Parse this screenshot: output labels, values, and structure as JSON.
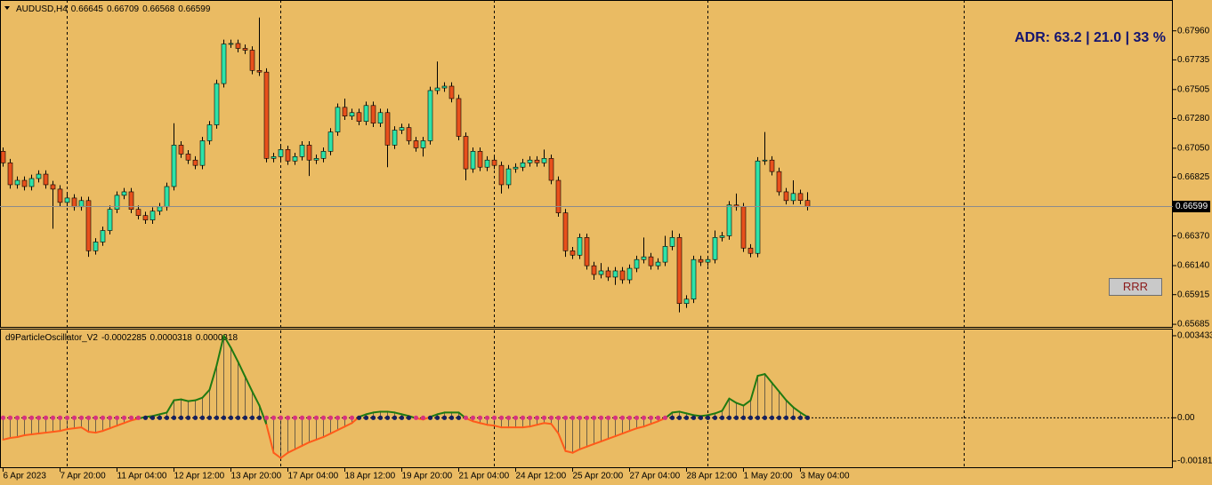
{
  "chart_data": [
    {
      "type": "candlestick",
      "symbol": "AUDUSD,H4",
      "categories": [
        "6 Apr 2023",
        null,
        null,
        null,
        null,
        null,
        null,
        null,
        "7 Apr 20:00",
        null,
        null,
        null,
        null,
        null,
        null,
        null,
        "11 Apr 04:00",
        null,
        null,
        null,
        null,
        null,
        null,
        null,
        "12 Apr 12:00",
        null,
        null,
        null,
        null,
        null,
        null,
        null,
        "13 Apr 20:00",
        null,
        null,
        null,
        null,
        null,
        null,
        null,
        "17 Apr 04:00",
        null,
        null,
        null,
        null,
        null,
        null,
        null,
        "18 Apr 12:00",
        null,
        null,
        null,
        null,
        null,
        null,
        null,
        "19 Apr 20:00",
        null,
        null,
        null,
        null,
        null,
        null,
        null,
        "21 Apr 04:00",
        null,
        null,
        null,
        null,
        null,
        null,
        null,
        "24 Apr 12:00",
        null,
        null,
        null,
        null,
        null,
        null,
        null,
        "25 Apr 20:00",
        null,
        null,
        null,
        null,
        null,
        null,
        null,
        "27 Apr 04:00",
        null,
        null,
        null,
        null,
        null,
        null,
        null,
        "28 Apr 12:00",
        null,
        null,
        null,
        null,
        null,
        null,
        null,
        "1 May 20:00",
        null,
        null,
        null,
        null,
        null,
        null,
        null,
        "3 May 04:00",
        null
      ],
      "open": [
        0.67026,
        0.66937,
        0.66767,
        0.66801,
        0.66753,
        0.66815,
        0.66849,
        0.66767,
        0.66733,
        0.6663,
        0.66664,
        0.66596,
        0.66644,
        0.66255,
        0.66323,
        0.66412,
        0.66576,
        0.66685,
        0.66712,
        0.66576,
        0.66528,
        0.66494,
        0.66562,
        0.66596,
        0.66753,
        0.67074,
        0.67005,
        0.66958,
        0.66917,
        0.67108,
        0.67231,
        0.67551,
        0.67858,
        0.67862,
        0.67824,
        0.6781,
        0.67653,
        0.6764,
        0.66971,
        0.66985,
        0.6704,
        0.66951,
        0.66985,
        0.67074,
        0.66958,
        0.66971,
        0.67026,
        0.67176,
        0.67367,
        0.67299,
        0.67326,
        0.67258,
        0.67381,
        0.67244,
        0.67326,
        0.67074,
        0.6719,
        0.6721,
        0.67108,
        0.67053,
        0.67108,
        0.67497,
        0.67517,
        0.67531,
        0.67435,
        0.67142,
        0.6689,
        0.67026,
        0.66903,
        0.66958,
        0.66917,
        0.66767,
        0.6689,
        0.66903,
        0.66937,
        0.66958,
        0.66937,
        0.66971,
        0.66801,
        0.66549,
        0.66255,
        0.66221,
        0.66358,
        0.66139,
        0.66071,
        0.66099,
        0.66051,
        0.66099,
        0.6603,
        0.66119,
        0.66187,
        0.66208,
        0.66139,
        0.66167,
        0.66289,
        0.66358,
        0.65846,
        0.6588,
        0.66187,
        0.66167,
        0.66187,
        0.66358,
        0.66371,
        0.6661,
        0.66596,
        0.66276,
        0.66235,
        0.66951,
        0.66958,
        0.66869,
        0.66712,
        0.66644,
        0.66699,
        0.66645
      ],
      "high": [
        0.67056,
        0.66967,
        0.66831,
        0.66831,
        0.66845,
        0.66879,
        0.66879,
        0.66797,
        0.66763,
        0.66694,
        0.66694,
        0.66674,
        0.66674,
        0.66353,
        0.66442,
        0.66606,
        0.66715,
        0.66742,
        0.66742,
        0.66606,
        0.66558,
        0.66592,
        0.66626,
        0.66783,
        0.67244,
        0.67104,
        0.67035,
        0.66988,
        0.67138,
        0.67261,
        0.67581,
        0.67892,
        0.67892,
        0.67892,
        0.67854,
        0.6784,
        0.68063,
        0.6767,
        0.67015,
        0.6707,
        0.6707,
        0.67015,
        0.67104,
        0.67104,
        0.67001,
        0.67056,
        0.67206,
        0.67397,
        0.67435,
        0.67356,
        0.67356,
        0.67411,
        0.67411,
        0.67356,
        0.67356,
        0.6722,
        0.6724,
        0.6724,
        0.67138,
        0.67138,
        0.67527,
        0.67722,
        0.67561,
        0.67561,
        0.67465,
        0.67172,
        0.67056,
        0.67056,
        0.66988,
        0.66988,
        0.66947,
        0.6692,
        0.66933,
        0.66967,
        0.66988,
        0.66988,
        0.6704,
        0.67001,
        0.66831,
        0.66579,
        0.66285,
        0.66388,
        0.66388,
        0.66169,
        0.6616,
        0.66129,
        0.66129,
        0.66129,
        0.66149,
        0.66217,
        0.66358,
        0.66238,
        0.66197,
        0.66371,
        0.66412,
        0.66388,
        0.6591,
        0.66217,
        0.66217,
        0.66217,
        0.66412,
        0.66401,
        0.6664,
        0.66699,
        0.66626,
        0.66306,
        0.66981,
        0.67176,
        0.66988,
        0.66899,
        0.66742,
        0.66801,
        0.66729,
        0.66709
      ],
      "low": [
        0.66907,
        0.66737,
        0.66737,
        0.66723,
        0.66723,
        0.66785,
        0.66737,
        0.66426,
        0.666,
        0.666,
        0.66566,
        0.66566,
        0.66208,
        0.66225,
        0.66293,
        0.66382,
        0.66546,
        0.66655,
        0.66546,
        0.66498,
        0.66464,
        0.66464,
        0.66532,
        0.66566,
        0.66723,
        0.66975,
        0.66928,
        0.66887,
        0.66887,
        0.67078,
        0.67201,
        0.67521,
        0.67828,
        0.67794,
        0.6778,
        0.67623,
        0.6761,
        0.66941,
        0.66941,
        0.66955,
        0.66921,
        0.66921,
        0.66955,
        0.66835,
        0.66928,
        0.66941,
        0.66996,
        0.67146,
        0.67269,
        0.67269,
        0.67228,
        0.67228,
        0.67214,
        0.67214,
        0.66903,
        0.67044,
        0.6716,
        0.67078,
        0.67023,
        0.66985,
        0.67078,
        0.67467,
        0.67487,
        0.67405,
        0.67112,
        0.66801,
        0.6686,
        0.66873,
        0.66873,
        0.66887,
        0.66699,
        0.66737,
        0.6686,
        0.66873,
        0.66907,
        0.66907,
        0.66907,
        0.66771,
        0.66519,
        0.66208,
        0.66191,
        0.66191,
        0.66109,
        0.6603,
        0.66041,
        0.66021,
        0.6599,
        0.66,
        0.66,
        0.66089,
        0.66157,
        0.66109,
        0.66109,
        0.66137,
        0.66259,
        0.65778,
        0.65812,
        0.6585,
        0.66137,
        0.66137,
        0.66157,
        0.66328,
        0.66341,
        0.66566,
        0.66246,
        0.66205,
        0.66205,
        0.66921,
        0.66839,
        0.66682,
        0.66614,
        0.66614,
        0.66615,
        0.66568
      ],
      "close": [
        0.66937,
        0.66767,
        0.66801,
        0.66753,
        0.66815,
        0.66849,
        0.66767,
        0.66733,
        0.6663,
        0.66664,
        0.66596,
        0.66644,
        0.66255,
        0.66323,
        0.66412,
        0.66576,
        0.66685,
        0.66712,
        0.66576,
        0.66528,
        0.66494,
        0.66562,
        0.66596,
        0.66753,
        0.67074,
        0.67005,
        0.66958,
        0.66917,
        0.67108,
        0.67231,
        0.67551,
        0.67858,
        0.67862,
        0.67824,
        0.6781,
        0.67653,
        0.6764,
        0.66971,
        0.66985,
        0.6704,
        0.66951,
        0.66985,
        0.67074,
        0.66958,
        0.66971,
        0.67026,
        0.67176,
        0.67367,
        0.67299,
        0.67326,
        0.67258,
        0.67381,
        0.67244,
        0.67326,
        0.67074,
        0.6719,
        0.6721,
        0.67108,
        0.67053,
        0.67108,
        0.67497,
        0.67517,
        0.67531,
        0.67435,
        0.67142,
        0.6689,
        0.67026,
        0.66903,
        0.66958,
        0.66917,
        0.66767,
        0.6689,
        0.66903,
        0.66937,
        0.66958,
        0.66937,
        0.66971,
        0.66801,
        0.66549,
        0.66255,
        0.66221,
        0.66358,
        0.66139,
        0.66071,
        0.66099,
        0.66051,
        0.66099,
        0.6603,
        0.66119,
        0.66187,
        0.66208,
        0.66139,
        0.66167,
        0.66289,
        0.66358,
        0.65846,
        0.6588,
        0.66187,
        0.66167,
        0.66187,
        0.66358,
        0.66371,
        0.6661,
        0.66596,
        0.66276,
        0.66235,
        0.66951,
        0.66958,
        0.66869,
        0.66712,
        0.66644,
        0.66699,
        0.66645,
        0.66599
      ],
      "up_color": "#2ee3a8",
      "down_color": "#e8501c",
      "wick_color": "#000000",
      "price_line_color": "#8c8c8c",
      "ylim": [
        0.65665,
        0.68199
      ],
      "yticks": [
        {
          "value": 0.6796,
          "label": "0.67960"
        },
        0.67735,
        0.67505,
        {
          "value": 0.6728,
          "label": "0.67280"
        },
        {
          "value": 0.6705,
          "label": "0.67050"
        },
        0.66825,
        {
          "value": 0.6637,
          "label": "0.66370"
        },
        {
          "value": 0.6614,
          "label": "0.66140"
        },
        0.65915,
        0.65685
      ],
      "grid": false,
      "annotation": "ADR: 63.2 | 21.0 | 33 %",
      "button": "RRR"
    },
    {
      "type": "oscillator",
      "name": "d9ParticleOscillator_V2",
      "header_values": [
        -0.0002285,
        3.18e-05,
        3.18e-05
      ],
      "values": [
        -0.000915,
        -0.000842,
        -0.000805,
        -0.000732,
        -0.000695,
        -0.000659,
        -0.000622,
        -0.000586,
        -0.000549,
        -0.000476,
        -0.000439,
        -0.000403,
        -0.000586,
        -0.000622,
        -0.000549,
        -0.000439,
        -0.000329,
        -0.00022,
        -0.00011,
        -3.7e-05,
        3.7e-05,
        7.3e-05,
        0.000146,
        0.00022,
        0.000732,
        0.000769,
        0.000695,
        0.000732,
        0.000842,
        0.001171,
        0.002196,
        0.00344,
        0.002928,
        0.002342,
        0.00172,
        0.001098,
        0.000512,
        -0.000293,
        -0.001464,
        -0.001684,
        -0.001464,
        -0.001318,
        -0.001171,
        -0.001025,
        -0.000915,
        -0.000805,
        -0.000659,
        -0.000512,
        -0.000366,
        -0.00022,
        3.7e-05,
        0.000146,
        0.00022,
        0.000256,
        0.000256,
        0.00022,
        0.000146,
        7.3e-05,
        -1.8e-05,
        -7.3e-05,
        3.7e-05,
        0.000146,
        0.00022,
        0.00022,
        0.00022,
        -1.8e-05,
        -0.000146,
        -0.00022,
        -0.000293,
        -0.000329,
        -0.000403,
        -0.000403,
        -0.000403,
        -0.000403,
        -0.000366,
        -0.000293,
        -0.00022,
        -0.000256,
        -0.000659,
        -0.001391,
        -0.001464,
        -0.001318,
        -0.001208,
        -0.001098,
        -0.000988,
        -0.000878,
        -0.000769,
        -0.000659,
        -0.000549,
        -0.000439,
        -0.000366,
        -0.000256,
        -0.000146,
        -1.8e-05,
        0.00022,
        0.000256,
        0.000183,
        0.00011,
        7.3e-05,
        0.00011,
        0.000183,
        0.000293,
        0.000805,
        0.000622,
        0.000512,
        0.000732,
        0.001757,
        0.00183,
        0.001464,
        0.001098,
        0.000732,
        0.000439,
        0.00022,
        3.18e-05
      ],
      "up_color": "#1f7a12",
      "down_color": "#ff5a1a",
      "histogram_color": "#3a3a3a",
      "dot_up_color": "#16205e",
      "dot_down_color": "#d6337f",
      "ylim": [
        -0.002107,
        0.0036927
      ],
      "yticks": [
        0.0034337,
        {
          "value": 0,
          "label": "0.00"
        },
        -0.001811
      ]
    }
  ]
}
